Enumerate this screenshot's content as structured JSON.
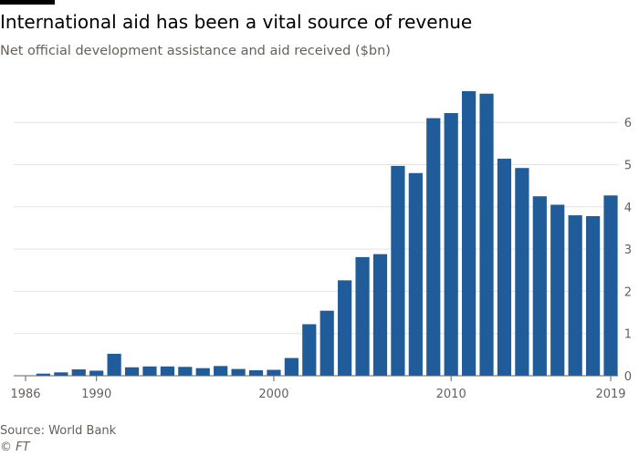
{
  "title": "International aid has been a vital source of revenue",
  "subtitle": "Net official development assistance and aid received ($bn)",
  "source": "Source: World Bank",
  "credit": "© FT",
  "colors": {
    "bar": "#1f5c99",
    "grid": "#e6e2df",
    "axis": "#66605c",
    "tick_text": "#66605c"
  },
  "chart_data": {
    "type": "bar",
    "title": "",
    "xlabel": "",
    "ylabel": "",
    "ylim": [
      0,
      7
    ],
    "y_ticks": [
      0,
      1,
      2,
      3,
      4,
      5,
      6
    ],
    "x_tick_labels": [
      "1986",
      "1990",
      "2000",
      "2010",
      "2019"
    ],
    "grid": true,
    "y_axis_side": "right",
    "categories": [
      1986,
      1987,
      1988,
      1989,
      1990,
      1991,
      1992,
      1993,
      1994,
      1995,
      1996,
      1997,
      1998,
      1999,
      2000,
      2001,
      2002,
      2003,
      2004,
      2005,
      2006,
      2007,
      2008,
      2009,
      2010,
      2011,
      2012,
      2013,
      2014,
      2015,
      2016,
      2017,
      2018,
      2019
    ],
    "values": [
      0.0,
      0.05,
      0.08,
      0.15,
      0.12,
      0.52,
      0.2,
      0.22,
      0.22,
      0.21,
      0.18,
      0.23,
      0.16,
      0.13,
      0.14,
      0.42,
      1.22,
      1.54,
      2.26,
      2.81,
      2.88,
      4.97,
      4.8,
      6.1,
      6.22,
      6.74,
      6.68,
      5.14,
      4.92,
      4.25,
      4.05,
      3.8,
      3.78,
      4.27
    ]
  }
}
